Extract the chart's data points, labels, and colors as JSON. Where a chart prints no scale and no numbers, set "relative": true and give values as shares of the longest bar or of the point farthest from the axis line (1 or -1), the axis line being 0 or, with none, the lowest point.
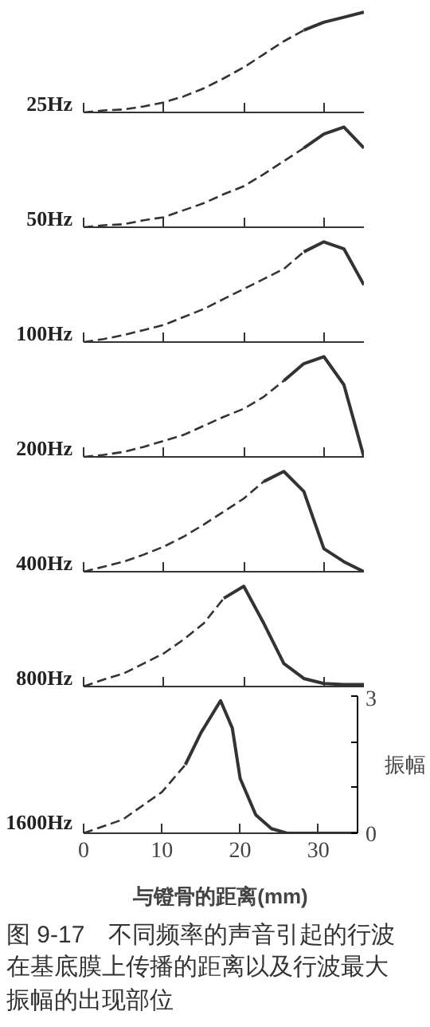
{
  "chart_data": [
    {
      "type": "line",
      "title": "25Hz",
      "categories": [
        null,
        null,
        null,
        null,
        null,
        null,
        null,
        null,
        null,
        null,
        null,
        null,
        null,
        null,
        null
      ],
      "relative": true,
      "series": [
        {
          "color": "#333333",
          "line_style": "dashed",
          "values": [
            0,
            0.02,
            0.03,
            0.06,
            0.1,
            0.16,
            0.24,
            0.34,
            0.45,
            0.58,
            0.71,
            0.82,
            null,
            null,
            null
          ]
        },
        {
          "color": "#333333",
          "line_style": "solid",
          "values": [
            null,
            null,
            null,
            null,
            null,
            null,
            null,
            null,
            null,
            null,
            null,
            0.82,
            0.9,
            0.95,
            1
          ]
        }
      ]
    },
    {
      "type": "line",
      "title": "50Hz",
      "categories": [
        null,
        null,
        null,
        null,
        null,
        null,
        null,
        null,
        null,
        null,
        null,
        null,
        null,
        null,
        null
      ],
      "relative": true,
      "series": [
        {
          "color": "#333333",
          "line_style": "dashed",
          "values": [
            0,
            0.02,
            0.03,
            0.07,
            0.1,
            0.17,
            0.24,
            0.33,
            0.41,
            0.53,
            0.66,
            0.79,
            null,
            null,
            null
          ]
        },
        {
          "color": "#333333",
          "line_style": "solid",
          "values": [
            null,
            null,
            null,
            null,
            null,
            null,
            null,
            null,
            null,
            null,
            null,
            0.79,
            0.93,
            1,
            0.79
          ]
        }
      ]
    },
    {
      "type": "line",
      "title": "100Hz",
      "categories": [
        null,
        null,
        null,
        null,
        null,
        null,
        null,
        null,
        null,
        null,
        null,
        null,
        null,
        null,
        null
      ],
      "relative": true,
      "series": [
        {
          "color": "#333333",
          "line_style": "dashed",
          "values": [
            0,
            0.03,
            0.07,
            0.12,
            0.17,
            0.25,
            0.33,
            0.43,
            0.53,
            0.63,
            0.73,
            0.9,
            null,
            null,
            null
          ]
        },
        {
          "color": "#333333",
          "line_style": "solid",
          "values": [
            null,
            null,
            null,
            null,
            null,
            null,
            null,
            null,
            null,
            null,
            null,
            0.9,
            1,
            0.93,
            0.57
          ]
        }
      ]
    },
    {
      "type": "line",
      "title": "200Hz",
      "categories": [
        null,
        null,
        null,
        null,
        null,
        null,
        null,
        null,
        null,
        null,
        null,
        null,
        null,
        null,
        null
      ],
      "relative": true,
      "series": [
        {
          "color": "#333333",
          "line_style": "dashed",
          "values": [
            0,
            0.02,
            0.05,
            0.1,
            0.16,
            0.22,
            0.31,
            0.4,
            0.48,
            0.6,
            0.76,
            null,
            null,
            null,
            null
          ]
        },
        {
          "color": "#333333",
          "line_style": "solid",
          "values": [
            null,
            null,
            null,
            null,
            null,
            null,
            null,
            null,
            null,
            null,
            0.76,
            0.93,
            1,
            0.72,
            0
          ]
        }
      ]
    },
    {
      "type": "line",
      "title": "400Hz",
      "categories": [
        null,
        null,
        null,
        null,
        null,
        null,
        null,
        null,
        null,
        null,
        null,
        null,
        null,
        null,
        null
      ],
      "relative": true,
      "series": [
        {
          "color": "#333333",
          "line_style": "dashed",
          "values": [
            0,
            0.05,
            0.1,
            0.17,
            0.25,
            0.35,
            0.47,
            0.6,
            0.73,
            0.9,
            null,
            null,
            null,
            null,
            null
          ]
        },
        {
          "color": "#333333",
          "line_style": "solid",
          "values": [
            null,
            null,
            null,
            null,
            null,
            null,
            null,
            null,
            null,
            0.9,
            1,
            0.8,
            0.23,
            0.1,
            0
          ]
        }
      ]
    },
    {
      "type": "line",
      "title": "800Hz",
      "categories": [
        null,
        null,
        null,
        null,
        null,
        null,
        null,
        null,
        null,
        null,
        null,
        null,
        null,
        null,
        null
      ],
      "relative": true,
      "series": [
        {
          "color": "#333333",
          "line_style": "dashed",
          "values": [
            0,
            0.07,
            0.13,
            0.23,
            0.33,
            0.47,
            0.63,
            0.88,
            null,
            null,
            null,
            null,
            null,
            null,
            null
          ]
        },
        {
          "color": "#333333",
          "line_style": "solid",
          "values": [
            null,
            null,
            null,
            null,
            null,
            null,
            null,
            0.88,
            1,
            0.63,
            0.23,
            0.08,
            0.03,
            0.02,
            0.02
          ]
        }
      ]
    },
    {
      "type": "line",
      "title": "1600Hz",
      "xlabel": "与镫骨的距离(mm)",
      "ylabel": "振幅",
      "xlim": [
        0,
        35
      ],
      "xticks": [
        0,
        10,
        20,
        30
      ],
      "ylim": [
        0,
        3
      ],
      "yticks": [
        0,
        {
          "value": 1,
          "label": null
        },
        {
          "value": 2,
          "label": null
        },
        3
      ],
      "annotations": [
        "图 9-17　不同频率的声音引起的行波在基底膜上传播的距离以及行波最大振幅的出现部位"
      ],
      "series": [
        {
          "color": "#333333",
          "line_style": "dashed",
          "x": [
            0,
            5,
            10,
            13
          ],
          "values": [
            0,
            0.3,
            0.9,
            1.5
          ]
        },
        {
          "color": "#333333",
          "line_style": "solid",
          "x": [
            13,
            15,
            17.5,
            19,
            20,
            22,
            24,
            26,
            35
          ],
          "values": [
            1.5,
            2.2,
            2.9,
            2.3,
            1.2,
            0.4,
            0.1,
            0,
            0
          ]
        }
      ]
    }
  ]
}
